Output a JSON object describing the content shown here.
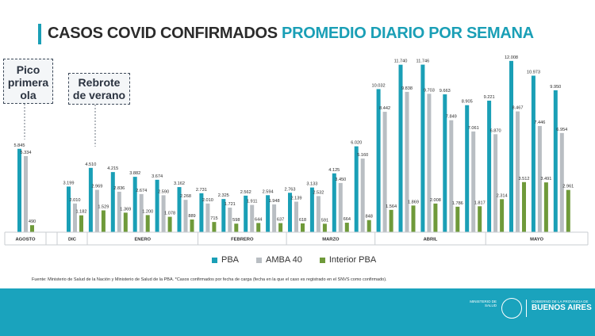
{
  "title": {
    "part1": "CASOS COVID CONFIRMADOS",
    "part2": "PROMEDIO DIARIO POR SEMANA"
  },
  "callouts": {
    "peak": "Pico primera ola",
    "rebound": "Rebrote de verano"
  },
  "colors": {
    "pba": "#1a9fb6",
    "amba": "#b9bec3",
    "interior": "#6f9a3a",
    "accent": "#1a9fb6",
    "footer": "#1aa3bd"
  },
  "legend": [
    {
      "label": "PBA",
      "color": "#1a9fb6"
    },
    {
      "label": "AMBA 40",
      "color": "#b9bec3"
    },
    {
      "label": "Interior PBA",
      "color": "#6f9a3a"
    }
  ],
  "source": "Fuente: Ministerio de Salud de la Nación y Ministerio de Salud de la PBA. *Casos confirmados por fecha de carga (fecha en la que el caso es registrado en el SNVS como confirmado).",
  "footer": {
    "ministerio": "MINISTERIO DE SALUD",
    "gobierno": "GOBIERNO DE LA PROVINCIA DE",
    "provincia": "BUENOS AIRES"
  },
  "chart_data": {
    "type": "bar",
    "title": "CASOS COVID CONFIRMADOS PROMEDIO DIARIO POR SEMANA",
    "ylim": [
      0,
      12500
    ],
    "grid": false,
    "legend_position": "bottom",
    "month_groups": [
      {
        "label": "AGOSTO",
        "count": 1
      },
      {
        "label": "DIC",
        "count": 1
      },
      {
        "label": "ENERO",
        "count": 5
      },
      {
        "label": "FEBRERO",
        "count": 4
      },
      {
        "label": "MARZO",
        "count": 4
      },
      {
        "label": "ABRIL",
        "count": 5
      },
      {
        "label": "MAYO",
        "count": 4
      }
    ],
    "series": [
      {
        "name": "PBA",
        "values": [
          5845,
          3199,
          4510,
          4215,
          3882,
          3674,
          3162,
          2731,
          2325,
          2562,
          2594,
          2763,
          3133,
          4125,
          6020,
          10032,
          11740,
          11746,
          9663,
          8905,
          9221,
          12008,
          10973,
          9950
        ]
      },
      {
        "name": "AMBA 40",
        "values": [
          5334,
          2010,
          2969,
          2836,
          2674,
          2590,
          2268,
          2010,
          1721,
          1911,
          1948,
          2139,
          2532,
          3450,
          5160,
          8442,
          9838,
          9703,
          7849,
          7061,
          6870,
          8467,
          7446,
          6954
        ]
      },
      {
        "name": "Interior PBA",
        "values": [
          490,
          1182,
          1529,
          1369,
          1200,
          1078,
          889,
          715,
          598,
          644,
          637,
          618,
          591,
          664,
          848,
          1564,
          1869,
          2008,
          1786,
          1817,
          2314,
          3512,
          3491,
          2961
        ]
      }
    ],
    "value_labels": [
      [
        "5.845",
        "3.199",
        "4.510",
        "4.215",
        "3.882",
        "3.674",
        "3.162",
        "2.731",
        "2.325",
        "2.562",
        "2.594",
        "2.763",
        "3.133",
        "4.125",
        "6.020",
        "10.032",
        "11.740",
        "11.746",
        "9.663",
        "8.905",
        "9.221",
        "12.008",
        "10.973",
        "9.950"
      ],
      [
        "5.334",
        "2.010",
        "2.969",
        "2.836",
        "2.674",
        "2.590",
        "2.268",
        "2.010",
        "1.721",
        "1.911",
        "1.948",
        "2.139",
        "2.532",
        "3.450",
        "5.160",
        "8.442",
        "9.838",
        "9.703",
        "7.849",
        "7.061",
        "6.870",
        "8.467",
        "7.446",
        "6.954"
      ],
      [
        "490",
        "1.182",
        "1.529",
        "1.369",
        "1.200",
        "1.078",
        "889",
        "715",
        "598",
        "644",
        "637",
        "618",
        "591",
        "664",
        "848",
        "1.564",
        "1.869",
        "2.008",
        "1.786",
        "1.817",
        "2.314",
        "3.512",
        "3.491",
        "2.961"
      ]
    ]
  }
}
